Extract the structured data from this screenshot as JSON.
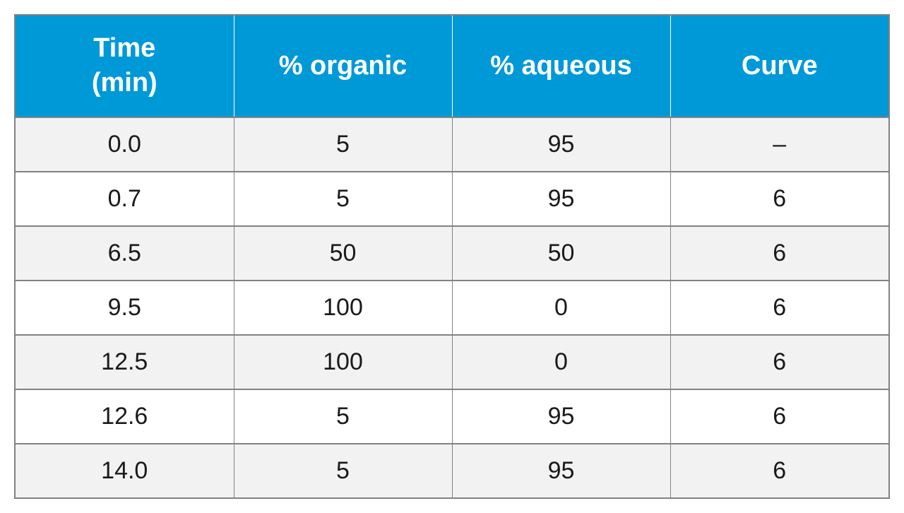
{
  "gradient_table": {
    "type": "table",
    "header_bg_color": "#0099d8",
    "header_text_color": "#ffffff",
    "header_fontsize": 38,
    "header_fontweight": 700,
    "body_fontsize": 34,
    "body_text_color": "#1a1a1a",
    "row_odd_bg": "#f2f2f2",
    "row_even_bg": "#ffffff",
    "border_color": "#808284",
    "outer_border_width": 2,
    "inner_border_width": 1,
    "columns": [
      {
        "label": "Time\n(min)",
        "width": "25%",
        "align": "center"
      },
      {
        "label": "% organic",
        "width": "25%",
        "align": "center"
      },
      {
        "label": "% aqueous",
        "width": "25%",
        "align": "center"
      },
      {
        "label": "Curve",
        "width": "25%",
        "align": "center"
      }
    ],
    "rows": [
      [
        "0.0",
        "5",
        "95",
        "–"
      ],
      [
        "0.7",
        "5",
        "95",
        "6"
      ],
      [
        "6.5",
        "50",
        "50",
        "6"
      ],
      [
        "9.5",
        "100",
        "0",
        "6"
      ],
      [
        "12.5",
        "100",
        "0",
        "6"
      ],
      [
        "12.6",
        "5",
        "95",
        "6"
      ],
      [
        "14.0",
        "5",
        "95",
        "6"
      ]
    ]
  }
}
